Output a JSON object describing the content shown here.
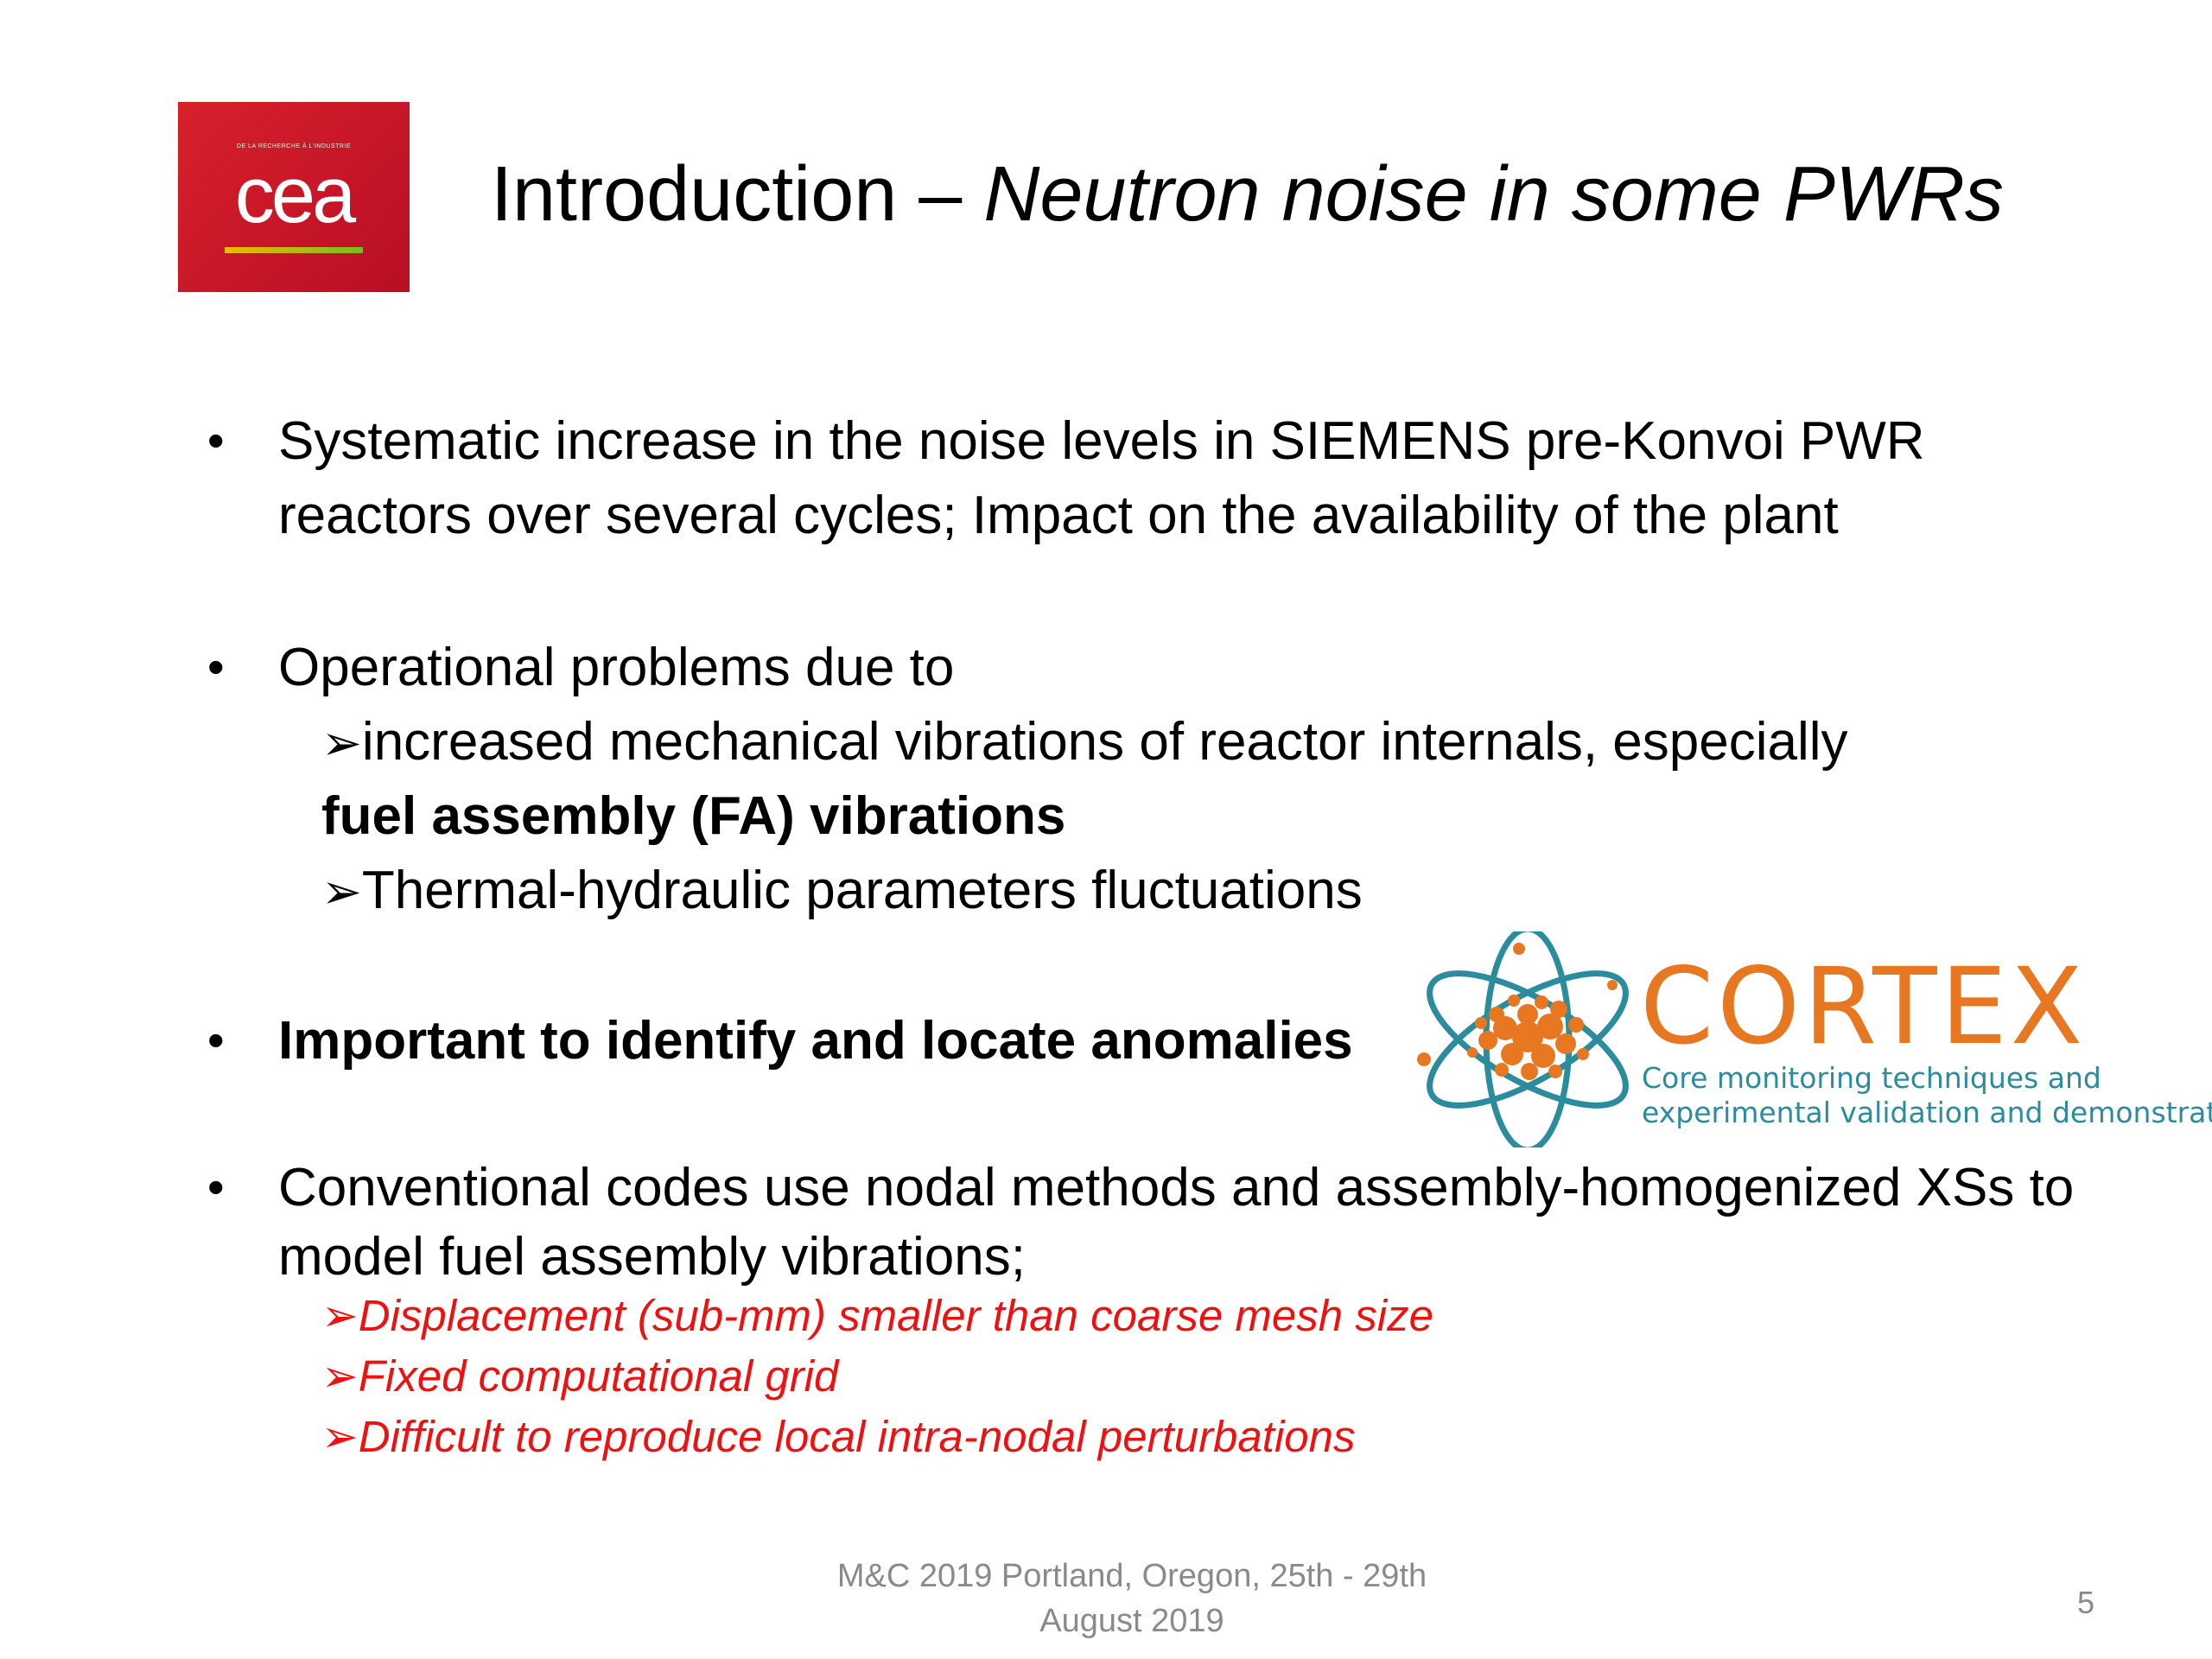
{
  "header": {
    "logo_text": "cea",
    "logo_tagline": "DE LA RECHERCHE À L'INDUSTRIE",
    "title_main": "Introduction – ",
    "title_sub": "Neutron noise in some PWRs"
  },
  "bullets": {
    "b1_line1": "Systematic increase in the noise levels in SIEMENS pre-Konvoi PWR",
    "b1_line2": "reactors over several cycles; Impact on the availability of the plant",
    "b2_line1": "Operational problems due to",
    "b2_sub1_line1": "increased mechanical vibrations of reactor internals, especially",
    "b2_sub1_line2": "fuel assembly (FA) vibrations",
    "b2_sub2": "Thermal-hydraulic parameters fluctuations",
    "b3": "Important to identify and locate anomalies",
    "b4_line1": "Conventional codes use nodal methods and assembly-homogenized XSs to",
    "b4_line2": "model fuel assembly vibrations;",
    "b4_sub1": "Displacement (sub-mm) smaller than coarse mesh size",
    "b4_sub2": "Fixed computational grid",
    "b4_sub3": "Difficult to reproduce local intra-nodal perturbations",
    "bullet_symbol": "•",
    "arrow_symbol": "➢"
  },
  "cortex": {
    "name": "CORTEX",
    "tagline_line1": "Core monitoring techniques and",
    "tagline_line2": "experimental validation and demonstration",
    "colors": {
      "orange": "#e87722",
      "teal": "#2a8c9c"
    }
  },
  "footer": {
    "line1": "M&C 2019 Portland, Oregon, 25th - 29th",
    "line2": "August 2019",
    "page_number": "5"
  },
  "colors": {
    "logo_red": "#c8102e",
    "emphasis_red": "#ee1111",
    "footer_gray": "#8a8a8a"
  }
}
